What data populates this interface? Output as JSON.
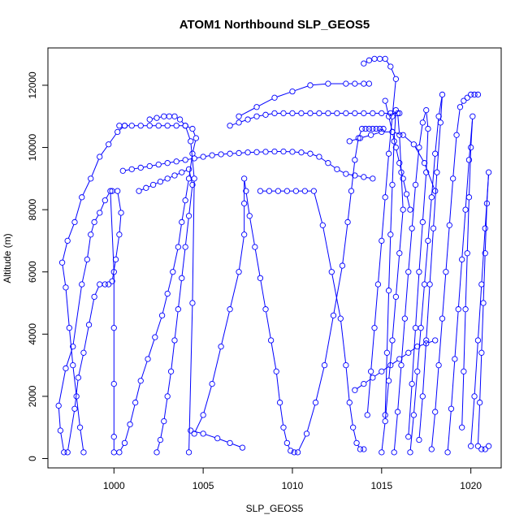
{
  "chart_data": {
    "type": "scatter",
    "title": "ATOM1 Northbound SLP_GEOS5",
    "xlabel": "SLP_GEOS5",
    "ylabel": "Altitude (m)",
    "xlim": [
      996.3,
      1021.7
    ],
    "ylim": [
      -300,
      13200
    ],
    "x_ticks": [
      1000,
      1005,
      1010,
      1015,
      1020
    ],
    "y_ticks": [
      0,
      2000,
      4000,
      6000,
      8000,
      10000,
      12000
    ],
    "x_tick_labels": [
      "1000",
      "1005",
      "1010",
      "1015",
      "1020"
    ],
    "y_tick_labels": [
      "0",
      "2000",
      "4000",
      "6000",
      "8000",
      "10000",
      "12000"
    ],
    "marker": "open-circle",
    "connected": true,
    "color": "#0000ff",
    "series": [
      {
        "x": [
          997.2,
          997.0,
          996.9,
          997.3,
          997.7,
          998.2,
          998.5,
          998.7,
          998.9,
          999.2,
          999.5,
          999.8,
          1000.0,
          1000.0,
          1000.0,
          1000.0,
          1000.0
        ],
        "y": [
          200,
          900,
          1700,
          2900,
          3600,
          5600,
          6400,
          7200,
          7600,
          7900,
          8300,
          8600,
          6000,
          4200,
          2400,
          700,
          200
        ]
      },
      {
        "x": [
          997.4,
          997.8,
          998.0,
          998.3,
          998.6,
          998.9,
          999.2,
          999.5,
          999.7,
          999.9,
          1000.1,
          1000.3,
          1000.4,
          1000.2,
          999.9
        ],
        "y": [
          200,
          1600,
          2600,
          3400,
          4300,
          5200,
          5600,
          5600,
          5600,
          5700,
          6400,
          7200,
          7900,
          8600,
          8600
        ]
      },
      {
        "x": [
          998.3,
          998.1,
          997.9,
          997.7,
          997.5,
          997.3,
          997.1,
          997.4,
          997.8,
          998.2,
          998.7,
          999.2,
          999.7,
          1000.2,
          1000.6
        ],
        "y": [
          200,
          1000,
          2000,
          3000,
          4200,
          5500,
          6300,
          7000,
          7600,
          8400,
          9000,
          9700,
          10100,
          10500,
          10700
        ]
      },
      {
        "x": [
          1000.3,
          1000.6,
          1001.0,
          1001.5,
          1002.0,
          1002.5,
          1003.0,
          1003.5,
          1004.0,
          1004.4,
          1004.6,
          1004.4,
          1004.2,
          1004.0,
          1003.8,
          1003.6,
          1003.3,
          1003.0,
          1002.7,
          1002.3,
          1001.9,
          1001.5,
          1001.2,
          1000.9,
          1000.6,
          1000.3
        ],
        "y": [
          10700,
          10700,
          10700,
          10700,
          10700,
          10700,
          10700,
          10700,
          10700,
          10600,
          10300,
          9800,
          9000,
          8300,
          7600,
          6800,
          6000,
          5300,
          4600,
          3900,
          3200,
          2500,
          1800,
          1100,
          500,
          200
        ]
      },
      {
        "x": [
          1000.5,
          1001.0,
          1001.5,
          1002.0,
          1002.5,
          1003.0,
          1003.5,
          1004.0,
          1004.5,
          1005.0,
          1005.5,
          1006.0,
          1006.5,
          1007.0,
          1007.5,
          1008.0,
          1008.5,
          1009.0,
          1009.5,
          1010.0,
          1010.5,
          1011.0,
          1011.5,
          1012.0,
          1012.5,
          1013.0,
          1013.5,
          1014.0,
          1014.5
        ],
        "y": [
          9250,
          9300,
          9350,
          9400,
          9450,
          9500,
          9550,
          9600,
          9650,
          9700,
          9750,
          9780,
          9800,
          9820,
          9840,
          9850,
          9860,
          9870,
          9870,
          9860,
          9840,
          9800,
          9700,
          9500,
          9300,
          9150,
          9100,
          9050,
          9000
        ]
      },
      {
        "x": [
          1001.4,
          1001.8,
          1002.2,
          1002.6,
          1003.0,
          1003.4,
          1003.8,
          1004.2,
          1004.4,
          1004.2,
          1004.0,
          1003.8,
          1003.6,
          1003.4,
          1003.2,
          1003.0,
          1002.8,
          1002.6,
          1002.4
        ],
        "y": [
          8600,
          8700,
          8800,
          8900,
          9000,
          9100,
          9200,
          9300,
          8800,
          7800,
          6800,
          5800,
          4800,
          3800,
          2800,
          2000,
          1200,
          600,
          200
        ]
      },
      {
        "x": [
          1002.0,
          1002.4,
          1002.8,
          1003.1,
          1003.4,
          1003.7,
          1004.0,
          1004.3,
          1004.5,
          1004.4,
          1004.2
        ],
        "y": [
          10900,
          10950,
          11000,
          11000,
          11000,
          10900,
          10700,
          10200,
          9000,
          5000,
          200
        ]
      },
      {
        "x": [
          1004.5,
          1005.0,
          1005.5,
          1006.0,
          1006.5,
          1007.0,
          1007.3,
          1007.3,
          1007.3,
          1007.4,
          1007.6,
          1007.9,
          1008.2,
          1008.5,
          1008.8,
          1009.1,
          1009.3,
          1009.5,
          1009.7,
          1009.9,
          1010.1
        ],
        "y": [
          800,
          1400,
          2400,
          3600,
          4800,
          6000,
          7200,
          8200,
          9000,
          8600,
          7800,
          6800,
          5800,
          4800,
          3800,
          2800,
          1800,
          1000,
          500,
          250,
          200
        ]
      },
      {
        "x": [
          1006.5,
          1007.0,
          1007.5,
          1008.0,
          1008.5,
          1009.0,
          1009.5,
          1010.0,
          1010.5,
          1011.0,
          1011.5,
          1012.0,
          1012.5,
          1013.0,
          1013.5,
          1014.0,
          1014.5,
          1015.0,
          1015.5,
          1016.0
        ],
        "y": [
          10700,
          10800,
          10900,
          11000,
          11050,
          11100,
          11100,
          11100,
          11100,
          11100,
          11100,
          11100,
          11100,
          11100,
          11100,
          11100,
          11100,
          11100,
          11100,
          11100
        ]
      },
      {
        "x": [
          1007.0,
          1008.0,
          1009.0,
          1010.0,
          1011.0,
          1012.0,
          1013.0,
          1013.5,
          1014.0,
          1014.3
        ],
        "y": [
          11000,
          11300,
          11600,
          11800,
          12000,
          12050,
          12050,
          12050,
          12050,
          12050
        ]
      },
      {
        "x": [
          1008.2,
          1008.7,
          1009.2,
          1009.7,
          1010.2,
          1010.7,
          1011.2,
          1011.7,
          1012.2,
          1012.7,
          1013.0,
          1013.2,
          1013.4,
          1013.6,
          1013.8,
          1014.0
        ],
        "y": [
          8600,
          8600,
          8600,
          8600,
          8600,
          8600,
          8600,
          7500,
          6000,
          4500,
          3000,
          1800,
          1000,
          500,
          300,
          300
        ]
      },
      {
        "x": [
          1010.3,
          1010.8,
          1011.3,
          1011.8,
          1012.3,
          1012.8,
          1013.1,
          1013.3,
          1013.5,
          1013.7,
          1013.9,
          1014.1,
          1014.3,
          1014.5,
          1014.7,
          1014.9,
          1015.1
        ],
        "y": [
          200,
          800,
          1800,
          3000,
          4600,
          6200,
          7600,
          8600,
          9600,
          10300,
          10600,
          10600,
          10600,
          10600,
          10600,
          10600,
          10600
        ]
      },
      {
        "x": [
          1014.0,
          1014.3,
          1014.6,
          1014.9,
          1015.2,
          1015.5,
          1015.8,
          1015.6,
          1015.4,
          1015.2,
          1015.0,
          1014.8,
          1014.6,
          1014.4,
          1014.2
        ],
        "y": [
          12700,
          12800,
          12850,
          12850,
          12850,
          12600,
          12200,
          11000,
          9800,
          8400,
          7000,
          5600,
          4200,
          2800,
          1400
        ]
      },
      {
        "x": [
          1015.0,
          1015.2,
          1015.4,
          1015.6,
          1015.8,
          1016.0,
          1016.2,
          1016.1,
          1016.0,
          1015.9,
          1015.8,
          1015.7,
          1015.6,
          1015.5,
          1015.4,
          1015.3,
          1015.2
        ],
        "y": [
          200,
          1200,
          2500,
          3800,
          5200,
          6600,
          8000,
          9200,
          10400,
          11100,
          11200,
          10200,
          8800,
          7200,
          5400,
          3400,
          1400
        ]
      },
      {
        "x": [
          1015.7,
          1015.9,
          1016.1,
          1016.3,
          1016.5,
          1016.7,
          1016.9,
          1017.1,
          1017.3,
          1017.5,
          1017.6,
          1017.5,
          1017.3,
          1017.1,
          1016.9,
          1016.7,
          1016.5
        ],
        "y": [
          200,
          1500,
          3000,
          4500,
          6000,
          7400,
          8800,
          10000,
          10800,
          11200,
          10600,
          9200,
          7600,
          6000,
          4200,
          2400,
          700
        ]
      },
      {
        "x": [
          1016.6,
          1016.8,
          1017.0,
          1017.2,
          1017.4,
          1017.6,
          1017.8,
          1018.0,
          1018.2,
          1018.4,
          1018.3,
          1018.1,
          1017.9,
          1017.7,
          1017.5,
          1017.3,
          1017.1
        ],
        "y": [
          200,
          1400,
          2800,
          4200,
          5600,
          7000,
          8400,
          9800,
          11000,
          11700,
          10800,
          9200,
          7400,
          5600,
          3800,
          2000,
          600
        ]
      },
      {
        "x": [
          1017.8,
          1018.0,
          1018.2,
          1018.4,
          1018.6,
          1018.8,
          1019.0,
          1019.2,
          1019.4,
          1019.6,
          1019.8,
          1020.0,
          1020.2,
          1020.4
        ],
        "y": [
          300,
          1500,
          3000,
          4500,
          6000,
          7500,
          9000,
          10400,
          11300,
          11500,
          11600,
          11700,
          11700,
          11700
        ]
      },
      {
        "x": [
          1018.7,
          1018.9,
          1019.1,
          1019.3,
          1019.5,
          1019.7,
          1019.9,
          1020.1,
          1020.0,
          1019.9,
          1019.8,
          1019.7,
          1019.6,
          1019.5
        ],
        "y": [
          200,
          1600,
          3200,
          4800,
          6400,
          8000,
          9600,
          11000,
          10000,
          8400,
          6600,
          4800,
          2800,
          1000
        ]
      },
      {
        "x": [
          1020.0,
          1020.2,
          1020.4,
          1020.6,
          1020.8,
          1021.0,
          1020.9,
          1020.8,
          1020.7,
          1020.6,
          1020.5,
          1020.4,
          1020.6,
          1020.8,
          1021.0
        ],
        "y": [
          400,
          2000,
          3800,
          5600,
          7400,
          9200,
          8200,
          6600,
          5000,
          3400,
          1800,
          400,
          300,
          300,
          400
        ]
      },
      {
        "x": [
          1013.5,
          1014.0,
          1014.5,
          1015.0,
          1015.5,
          1016.0,
          1016.5,
          1017.0,
          1017.5,
          1018.0
        ],
        "y": [
          2200,
          2400,
          2600,
          2800,
          3000,
          3200,
          3400,
          3600,
          3700,
          3800
        ]
      },
      {
        "x": [
          1013.2,
          1013.8,
          1014.4,
          1015.0,
          1015.6,
          1016.2,
          1016.8,
          1017.4,
          1018.0
        ],
        "y": [
          10200,
          10300,
          10400,
          10500,
          10500,
          10400,
          10100,
          9500,
          8600
        ]
      },
      {
        "x": [
          1015.2,
          1015.4,
          1015.6,
          1015.8,
          1016.0,
          1016.2,
          1016.4,
          1016.6
        ],
        "y": [
          11500,
          11000,
          10500,
          10000,
          9500,
          9000,
          8500,
          8000
        ]
      },
      {
        "x": [
          1004.3,
          1005.0,
          1005.8,
          1006.5,
          1007.2
        ],
        "y": [
          900,
          800,
          650,
          500,
          350
        ]
      }
    ]
  }
}
